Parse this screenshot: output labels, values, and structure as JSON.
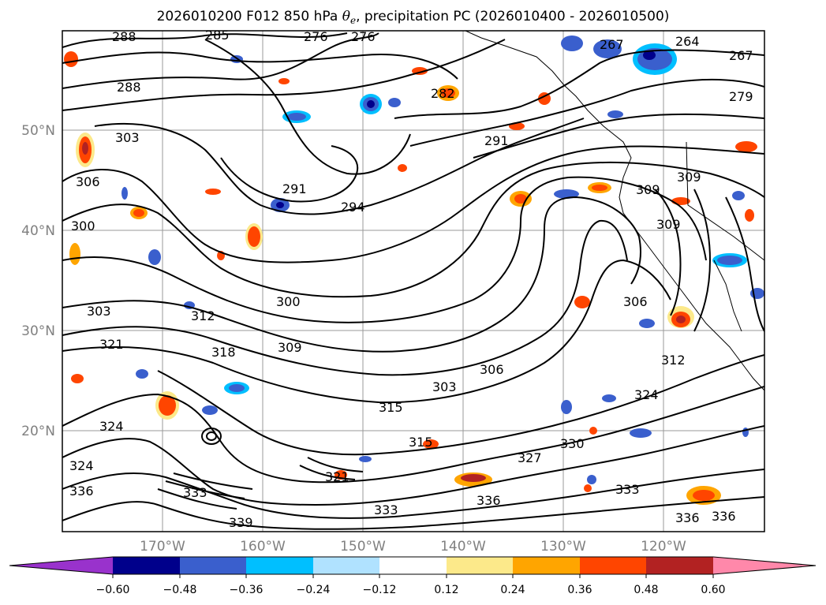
{
  "title": {
    "prefix": "2026010200 F012 850 hPa ",
    "symbol": "θ",
    "subscript": "e",
    "suffix": ", precipitation PC (2026010400 - 2026010500)"
  },
  "map": {
    "projection": "lat-lon",
    "lat_labels": [
      "50°N",
      "40°N",
      "30°N",
      "20°N"
    ],
    "lon_labels": [
      "170°W",
      "160°W",
      "150°W",
      "140°W",
      "130°W",
      "120°W"
    ],
    "gridline_color": "#999999"
  },
  "contour_labels": [
    "288",
    "285",
    "276",
    "276",
    "267",
    "264",
    "267",
    "279",
    "288",
    "282",
    "303",
    "291",
    "306",
    "291",
    "294",
    "300",
    "309",
    "309",
    "300",
    "303",
    "312",
    "321",
    "318",
    "309",
    "306",
    "306",
    "312",
    "303",
    "315",
    "324",
    "324",
    "324",
    "315",
    "327",
    "330",
    "336",
    "333",
    "321",
    "333",
    "336",
    "339",
    "336",
    "336",
    "333",
    "309"
  ],
  "colorbar": {
    "ticks": [
      "−0.60",
      "−0.48",
      "−0.36",
      "−0.24",
      "−0.12",
      "0.12",
      "0.24",
      "0.36",
      "0.48",
      "0.60"
    ],
    "colors": [
      "#9932cc",
      "#00008b",
      "#3a5fcd",
      "#00bfff",
      "#b0e2ff",
      "#ffffff",
      "#fce98a",
      "#ffa500",
      "#ff4500",
      "#b22222",
      "#ff88aa"
    ]
  }
}
